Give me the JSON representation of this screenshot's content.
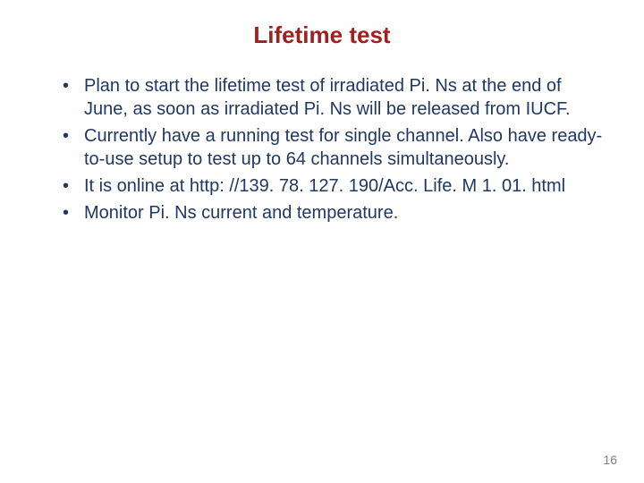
{
  "slide": {
    "title": "Lifetime test",
    "title_color": "#a02020",
    "bullets": [
      "Plan to start the lifetime test of irradiated Pi. Ns at the end of June, as soon as irradiated Pi. Ns will be released from IUCF.",
      "Currently have a running test for single channel. Also have ready-to-use setup to  test up to 64 channels simultaneously.",
      "It is online at http: //139. 78. 127. 190/Acc. Life. M 1. 01. html",
      "Monitor Pi. Ns current and temperature."
    ],
    "body_color": "#203864",
    "page_number": "16",
    "page_number_color": "#7f7f7f",
    "background_color": "#ffffff",
    "title_fontsize": 26,
    "body_fontsize": 20,
    "page_number_fontsize": 14
  }
}
